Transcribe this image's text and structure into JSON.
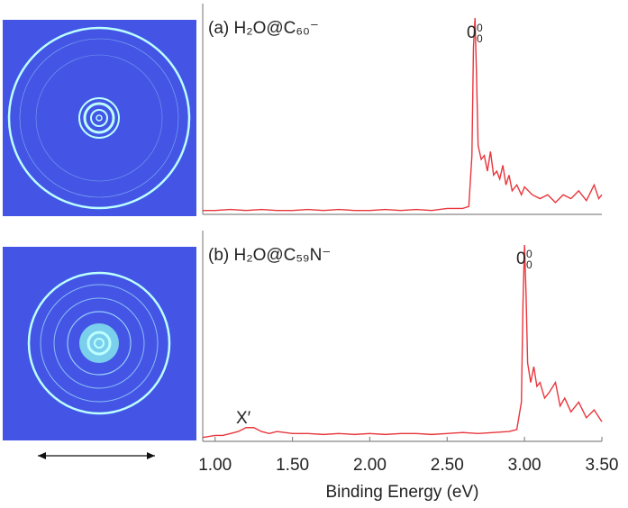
{
  "chart_data": [
    {
      "type": "line",
      "title": "(a) H₂O@C₆₀⁻",
      "annotations": [
        {
          "text": "0",
          "sub": "0",
          "sup": "0"
        }
      ],
      "xlim": [
        0.92,
        3.5
      ],
      "ylim": [
        0,
        1
      ],
      "series": [
        {
          "color": "#e8363c",
          "x": [
            0.92,
            1.0,
            1.1,
            1.2,
            1.3,
            1.4,
            1.5,
            1.6,
            1.7,
            1.8,
            1.9,
            2.0,
            2.1,
            2.2,
            2.3,
            2.4,
            2.5,
            2.6,
            2.64,
            2.66,
            2.67,
            2.68,
            2.69,
            2.7,
            2.72,
            2.74,
            2.76,
            2.78,
            2.8,
            2.82,
            2.84,
            2.86,
            2.88,
            2.9,
            2.92,
            2.95,
            2.98,
            3.0,
            3.05,
            3.1,
            3.15,
            3.2,
            3.25,
            3.3,
            3.35,
            3.4,
            3.45,
            3.48,
            3.5
          ],
          "values": [
            0.02,
            0.02,
            0.025,
            0.02,
            0.025,
            0.02,
            0.02,
            0.025,
            0.02,
            0.025,
            0.02,
            0.02,
            0.025,
            0.02,
            0.025,
            0.02,
            0.03,
            0.03,
            0.04,
            0.3,
            0.85,
            1.0,
            0.7,
            0.35,
            0.28,
            0.3,
            0.22,
            0.32,
            0.2,
            0.22,
            0.18,
            0.25,
            0.15,
            0.2,
            0.12,
            0.15,
            0.1,
            0.14,
            0.1,
            0.08,
            0.1,
            0.06,
            0.1,
            0.08,
            0.12,
            0.07,
            0.15,
            0.08,
            0.1
          ]
        }
      ]
    },
    {
      "type": "line",
      "title": "(b) H₂O@C₅₉N⁻",
      "xlabel": "Binding Energy (eV)",
      "annotations": [
        {
          "text": "0",
          "sub": "0",
          "sup": "0"
        },
        {
          "text": "X′"
        }
      ],
      "xlim": [
        0.92,
        3.5
      ],
      "ylim": [
        0,
        1
      ],
      "xticks": [
        {
          "value": 1,
          "label": "1.00"
        },
        {
          "value": 1.5,
          "label": "1.50"
        },
        {
          "value": 2,
          "label": "2.00"
        },
        {
          "value": 2.5,
          "label": "2.50"
        },
        {
          "value": 3,
          "label": "3.00"
        },
        {
          "value": 3.5,
          "label": "3.50"
        }
      ],
      "series": [
        {
          "color": "#e8363c",
          "x": [
            0.92,
            1.0,
            1.05,
            1.1,
            1.15,
            1.2,
            1.25,
            1.3,
            1.35,
            1.4,
            1.5,
            1.6,
            1.7,
            1.8,
            1.9,
            2.0,
            2.1,
            2.2,
            2.3,
            2.4,
            2.5,
            2.6,
            2.7,
            2.8,
            2.9,
            2.95,
            2.98,
            2.99,
            3.0,
            3.01,
            3.02,
            3.04,
            3.06,
            3.08,
            3.1,
            3.13,
            3.16,
            3.2,
            3.23,
            3.26,
            3.3,
            3.35,
            3.4,
            3.45,
            3.5
          ],
          "values": [
            0.02,
            0.03,
            0.03,
            0.04,
            0.05,
            0.07,
            0.07,
            0.05,
            0.04,
            0.05,
            0.04,
            0.04,
            0.035,
            0.04,
            0.035,
            0.04,
            0.035,
            0.04,
            0.04,
            0.035,
            0.04,
            0.045,
            0.04,
            0.045,
            0.05,
            0.06,
            0.2,
            0.7,
            1.0,
            0.75,
            0.4,
            0.3,
            0.38,
            0.28,
            0.3,
            0.22,
            0.25,
            0.3,
            0.18,
            0.22,
            0.15,
            0.2,
            0.12,
            0.16,
            0.1
          ]
        }
      ]
    }
  ]
}
